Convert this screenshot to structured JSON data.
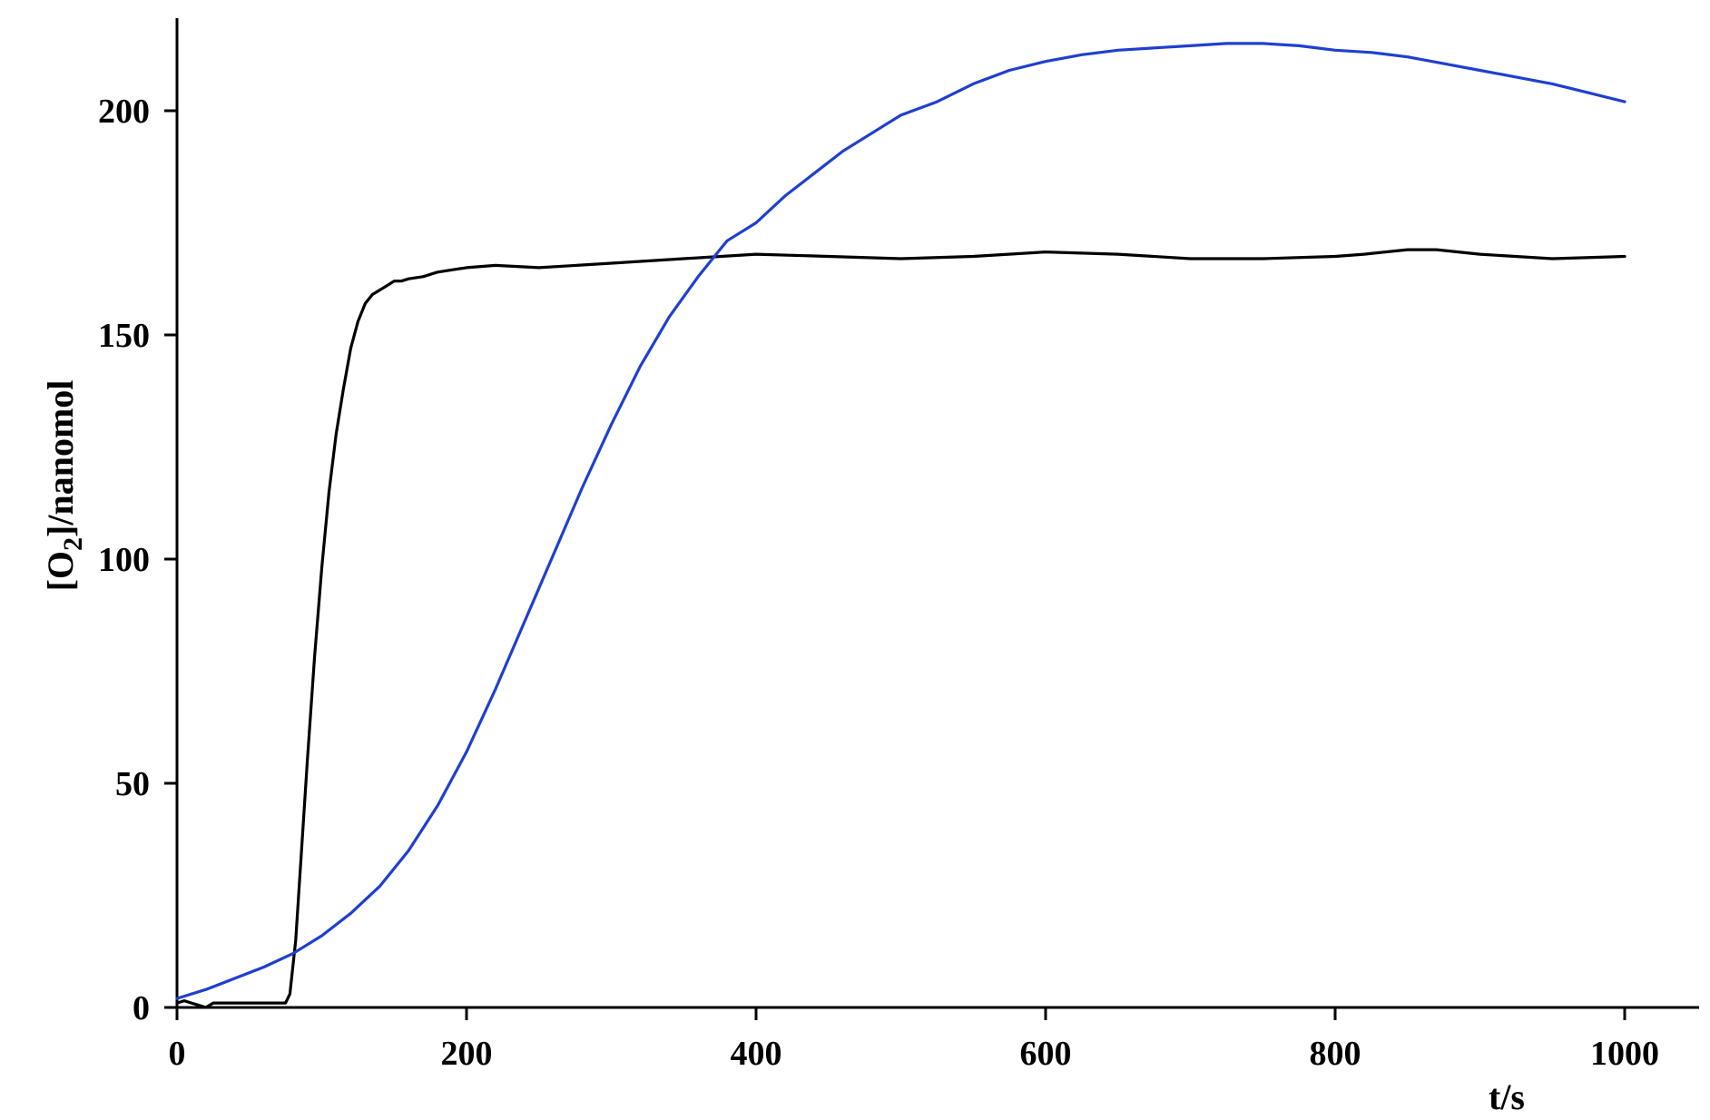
{
  "chart_data": {
    "type": "line",
    "title": "",
    "xlabel": "t/s",
    "ylabel": {
      "prefix": "[O",
      "subscript": "2",
      "suffix": "]/nanomol"
    },
    "xlim": [
      0,
      1000
    ],
    "ylim": [
      0,
      220
    ],
    "xticks": [
      0,
      200,
      400,
      600,
      800,
      1000
    ],
    "yticks": [
      0,
      50,
      100,
      150,
      200
    ],
    "grid": false,
    "legend": "none",
    "series": [
      {
        "color": "#000000",
        "x": [
          0,
          5,
          10,
          15,
          20,
          25,
          30,
          40,
          50,
          60,
          70,
          75,
          78,
          82,
          86,
          90,
          95,
          100,
          105,
          110,
          115,
          120,
          125,
          130,
          135,
          140,
          145,
          150,
          155,
          160,
          170,
          180,
          200,
          220,
          250,
          300,
          350,
          400,
          450,
          500,
          550,
          600,
          650,
          700,
          750,
          800,
          820,
          850,
          870,
          900,
          950,
          1000
        ],
        "y": [
          1,
          1.5,
          1,
          0.5,
          0,
          1,
          1,
          1,
          1,
          1,
          1,
          1,
          3,
          15,
          35,
          55,
          78,
          98,
          115,
          128,
          138,
          147,
          153,
          157,
          159,
          160,
          161,
          162,
          162,
          162.5,
          163,
          164,
          165,
          165.5,
          165,
          166,
          167,
          168,
          167.5,
          167,
          167.5,
          168.5,
          168,
          167,
          167,
          167.5,
          168,
          169,
          169,
          168,
          167,
          167.5
        ]
      },
      {
        "color": "#1f3fd1",
        "x": [
          0,
          20,
          40,
          60,
          80,
          100,
          120,
          140,
          160,
          180,
          200,
          220,
          240,
          260,
          280,
          300,
          320,
          340,
          360,
          380,
          400,
          420,
          440,
          460,
          480,
          500,
          525,
          550,
          575,
          600,
          625,
          650,
          675,
          700,
          725,
          750,
          775,
          800,
          825,
          850,
          875,
          900,
          925,
          950,
          975,
          1000
        ],
        "y": [
          2,
          4,
          6.5,
          9,
          12,
          16,
          21,
          27,
          35,
          45,
          57,
          71,
          86,
          101,
          116,
          130,
          143,
          154,
          163,
          171,
          175,
          181,
          186,
          191,
          195,
          199,
          202,
          206,
          209,
          211,
          212.5,
          213.5,
          214,
          214.5,
          215,
          215,
          214.5,
          213.5,
          213,
          212,
          210.5,
          209,
          207.5,
          206,
          204,
          202
        ]
      }
    ]
  }
}
